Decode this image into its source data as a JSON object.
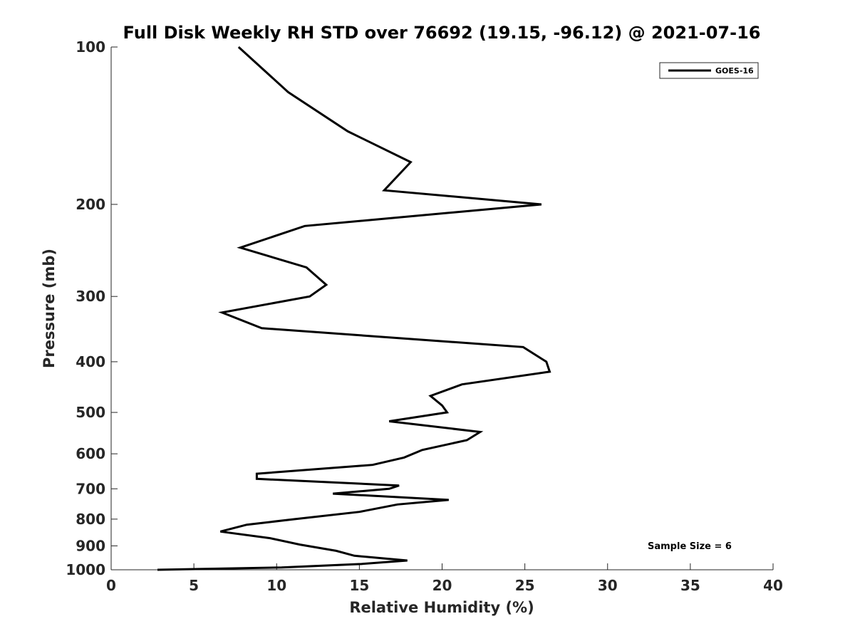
{
  "chart_data": {
    "type": "line",
    "title": "Full Disk Weekly RH STD over 76692 (19.15, -96.12) @ 2021-07-16",
    "xlabel": "Relative Humidity (%)",
    "ylabel": "Pressure (mb)",
    "xlim": [
      0,
      40
    ],
    "ylim": [
      100,
      1000
    ],
    "y_scale": "log",
    "y_reversed": true,
    "x_ticks": [
      0,
      5,
      10,
      15,
      20,
      25,
      30,
      35,
      40
    ],
    "x_tick_labels": [
      "0",
      "5",
      "10",
      "15",
      "20",
      "25",
      "30",
      "35",
      "40"
    ],
    "y_ticks": [
      100,
      200,
      300,
      400,
      500,
      600,
      700,
      800,
      900,
      1000
    ],
    "y_tick_labels": [
      "100",
      "200",
      "300",
      "400",
      "500",
      "600",
      "700",
      "800",
      "900",
      "1000"
    ],
    "grid": false,
    "legend_position": "top-right",
    "series": [
      {
        "name": "GOES-16",
        "color": "#000000",
        "x": [
          7.7,
          10.7,
          14.3,
          18.1,
          16.5,
          26.0,
          11.7,
          7.8,
          11.8,
          13.0,
          12.0,
          6.7,
          9.1,
          24.9,
          26.3,
          26.5,
          21.2,
          19.3,
          20.0,
          20.3,
          16.8,
          22.3,
          21.5,
          18.8,
          17.7,
          15.8,
          8.8,
          8.8,
          17.4,
          16.8,
          13.4,
          20.4,
          17.3,
          15.0,
          11.1,
          8.2,
          6.6,
          9.6,
          11.4,
          13.6,
          14.7,
          17.9,
          15.1,
          10.3,
          2.8
        ],
        "y": [
          100,
          122,
          145,
          166,
          188,
          200,
          220,
          242,
          264,
          285,
          300,
          322,
          345,
          375,
          400,
          418,
          442,
          465,
          485,
          500,
          520,
          545,
          565,
          590,
          610,
          630,
          655,
          670,
          690,
          700,
          715,
          735,
          750,
          775,
          800,
          820,
          845,
          870,
          895,
          920,
          940,
          960,
          975,
          990,
          1000
        ]
      }
    ],
    "annotations": [
      {
        "text": "Sample Size = 6"
      }
    ]
  }
}
